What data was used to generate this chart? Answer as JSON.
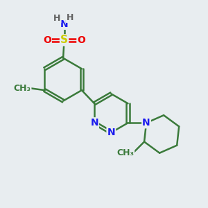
{
  "bg_color": "#e8edf0",
  "bond_color": "#3a7a3a",
  "atom_colors": {
    "N": "#1a1aee",
    "S": "#cccc00",
    "O": "#ee0000",
    "C": "#3a7a3a",
    "H": "#606060"
  },
  "bond_width": 1.8,
  "font_size": 10
}
